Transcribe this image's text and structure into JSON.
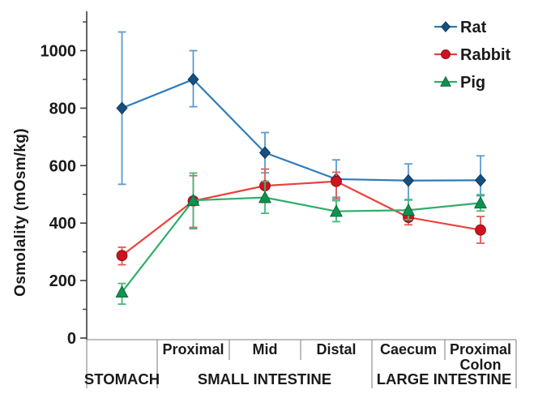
{
  "chart_data": {
    "type": "line",
    "title": "",
    "ylabel": "Osmolality  (mOsm/kg)",
    "ylim": [
      0,
      1130
    ],
    "yticks_major": [
      0,
      200,
      400,
      600,
      800,
      1000
    ],
    "yticks_minor": [
      100,
      300,
      500,
      700,
      900,
      1100
    ],
    "grid": false,
    "legend_position": "top-right",
    "categories": [
      "Stomach",
      "Proximal small intestine",
      "Mid small intestine",
      "Distal small intestine",
      "Caecum",
      "Proximal colon"
    ],
    "x_axis": {
      "sub_labels": [
        "",
        "Proximal",
        "Mid",
        "Distal",
        "Caecum",
        "Proximal\nColon"
      ],
      "groups": [
        {
          "label": "STOMACH",
          "span": [
            0,
            1
          ]
        },
        {
          "label": "SMALL INTESTINE",
          "span": [
            1,
            4
          ]
        },
        {
          "label": "LARGE INTESTINE",
          "span": [
            4,
            6
          ]
        }
      ]
    },
    "series": [
      {
        "name": "Rat",
        "marker": "diamond",
        "color": "#2e7cb8",
        "marker_color": "#16507e",
        "marker_edge": "#0e3a5e",
        "error_color": "#5b9bce",
        "values": [
          800,
          900,
          645,
          553,
          548,
          549
        ],
        "err_lo": [
          535,
          805,
          575,
          490,
          482,
          495
        ],
        "err_hi": [
          1065,
          1000,
          715,
          620,
          606,
          634
        ]
      },
      {
        "name": "Rabbit",
        "marker": "circle",
        "color": "#e8423c",
        "marker_color": "#cf1220",
        "marker_edge": "#8e0e14",
        "error_color": "#e25b55",
        "values": [
          287,
          477,
          530,
          545,
          420,
          376
        ],
        "err_lo": [
          255,
          385,
          472,
          484,
          394,
          330
        ],
        "err_hi": [
          316,
          565,
          588,
          577,
          447,
          423
        ]
      },
      {
        "name": "Pig",
        "marker": "triangle",
        "color": "#2fae68",
        "marker_color": "#119150",
        "marker_edge": "#0a6b39",
        "error_color": "#43b878",
        "values": [
          160,
          479,
          489,
          441,
          445,
          470
        ],
        "err_lo": [
          118,
          380,
          434,
          405,
          412,
          442
        ],
        "err_hi": [
          190,
          574,
          545,
          478,
          480,
          499
        ]
      }
    ]
  }
}
